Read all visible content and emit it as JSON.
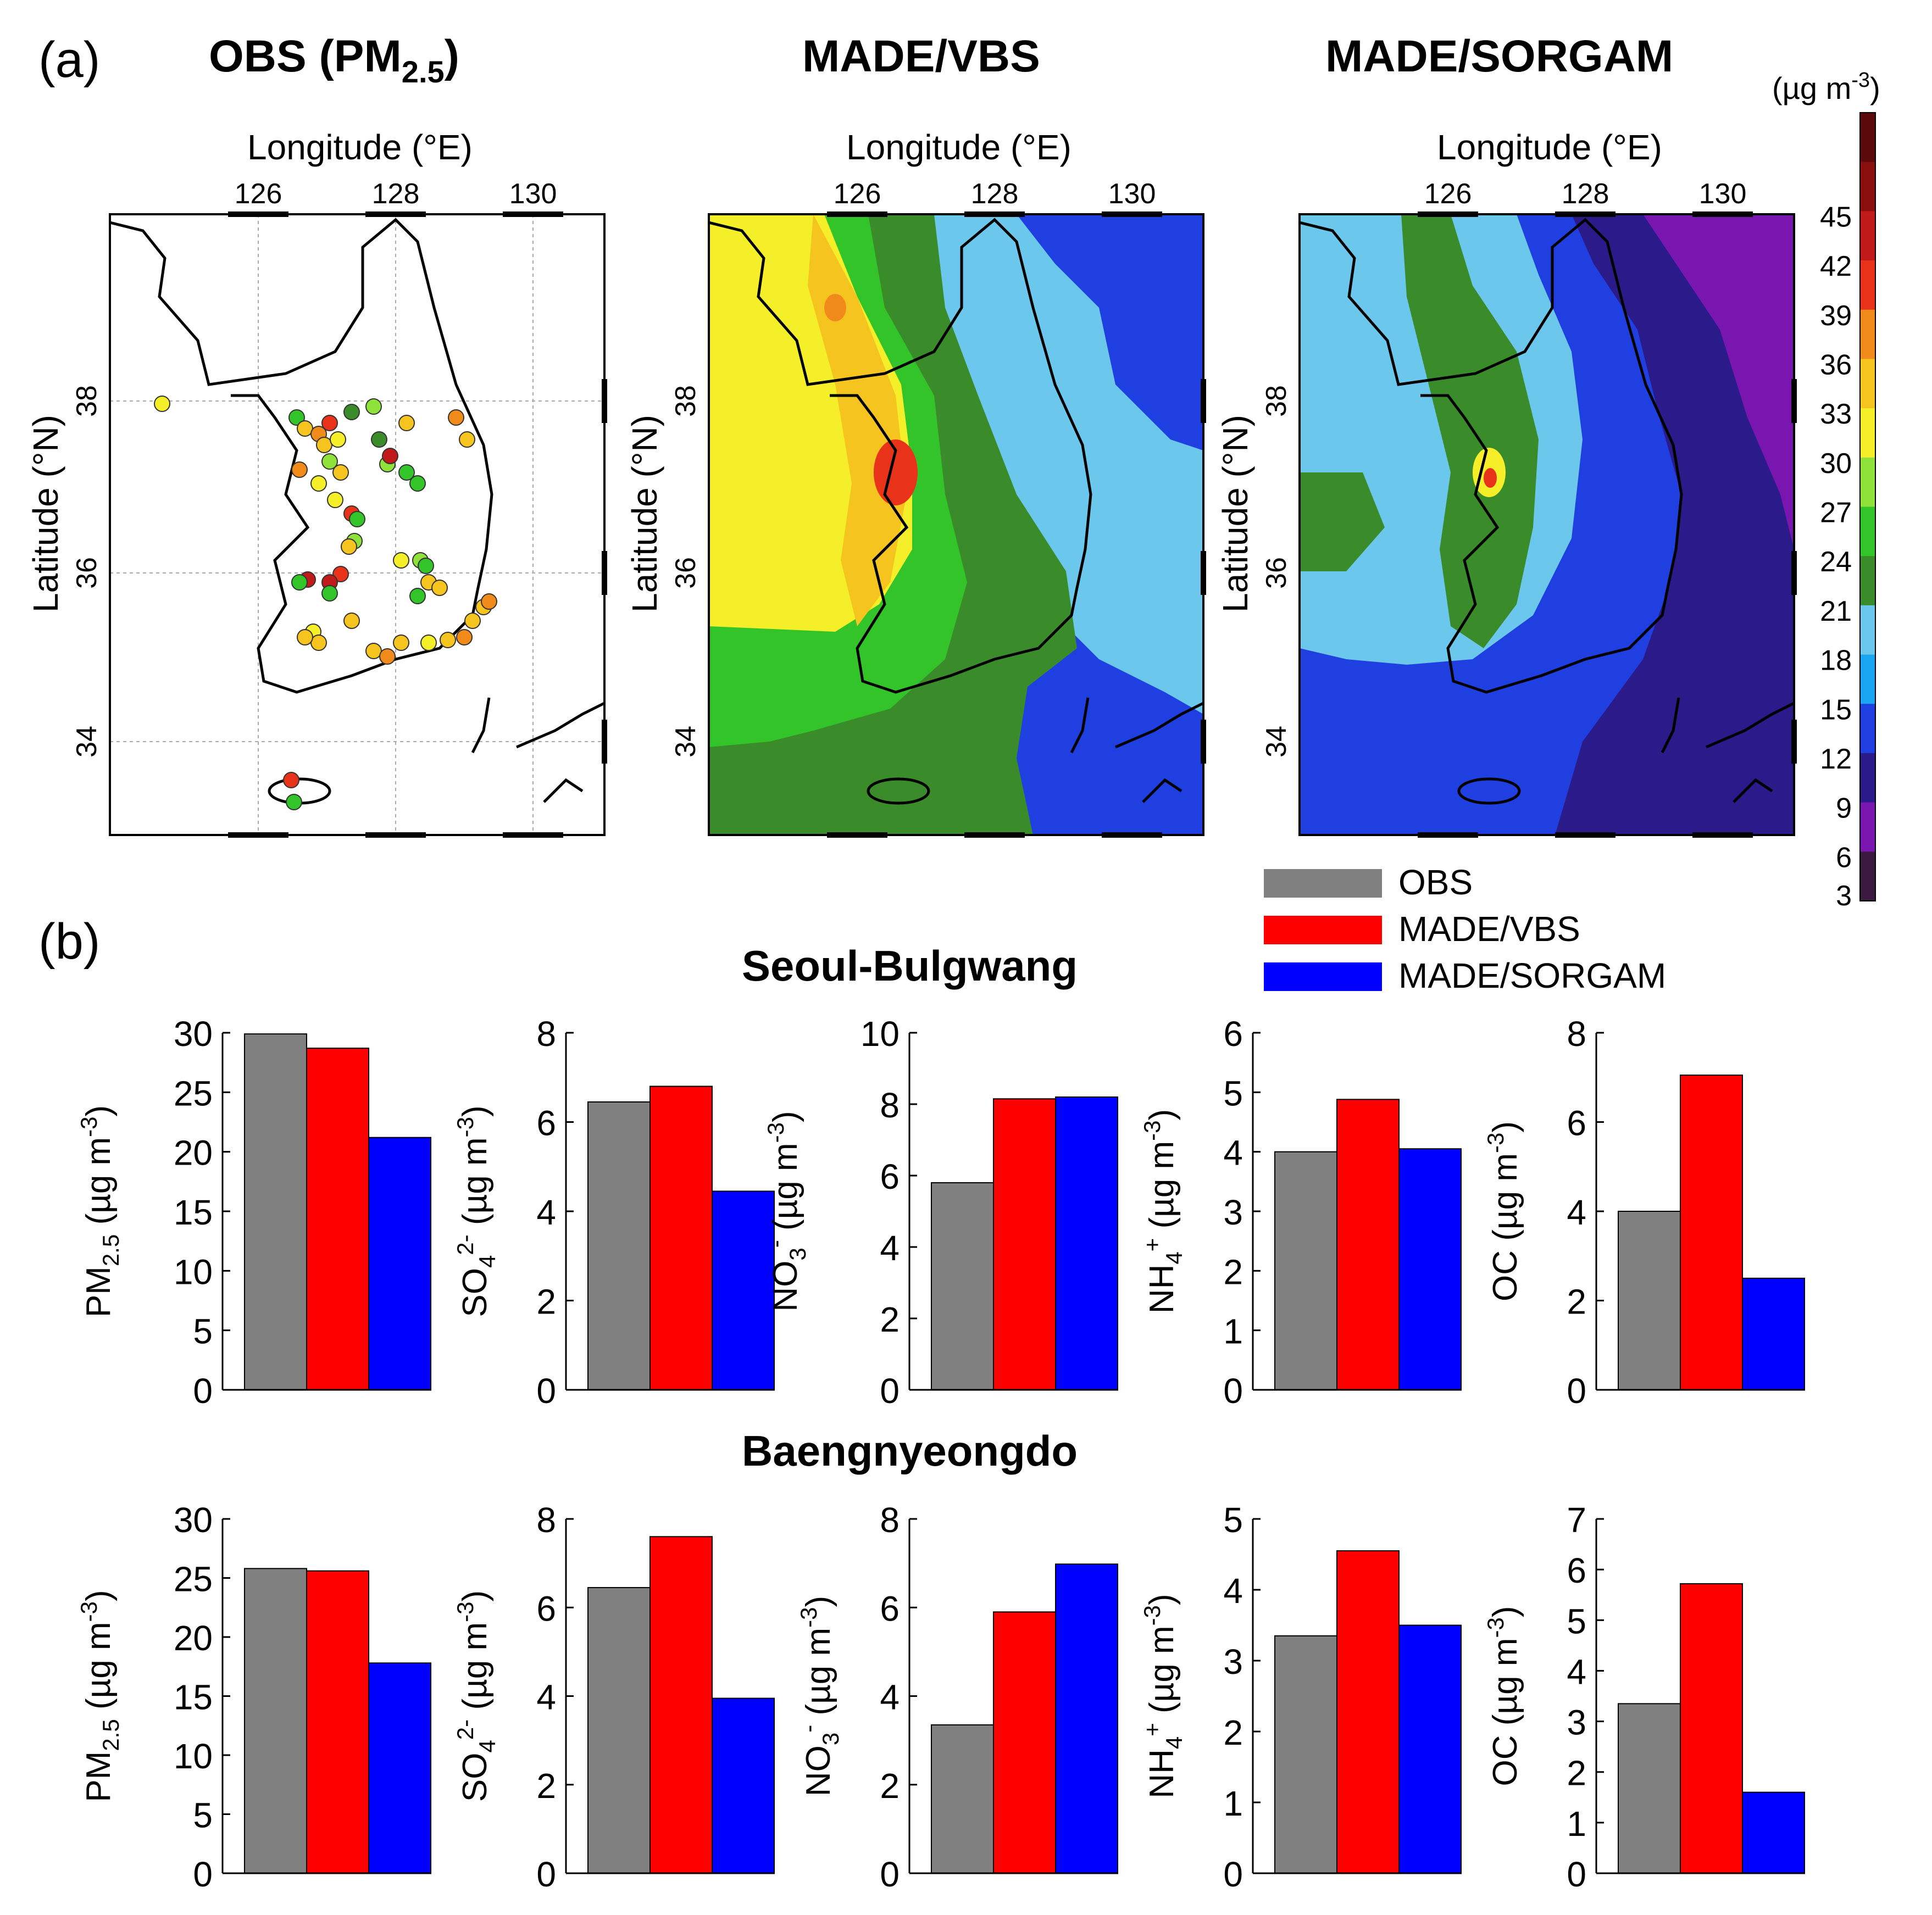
{
  "panel_a": {
    "label": "(a)",
    "maps": [
      {
        "title": "OBS (PM",
        "sub": "2.5",
        "close": ")"
      },
      {
        "title": "MADE/VBS"
      },
      {
        "title": "MADE/SORGAM"
      }
    ],
    "lon_label": "Longitude (°E)",
    "lat_label": "Latitude (°N)",
    "lon_ticks": [
      "126",
      "128",
      "130"
    ],
    "lat_ticks": [
      "34",
      "36",
      "38"
    ],
    "colorbar": {
      "unit": "(µg m",
      "unit_sup": "-3",
      "unit_close": ")",
      "labels": [
        "3",
        "6",
        "9",
        "12",
        "15",
        "18",
        "21",
        "24",
        "27",
        "30",
        "33",
        "36",
        "39",
        "42",
        "45"
      ],
      "colors": [
        "#3a1a3e",
        "#7a16b0",
        "#2a1a8a",
        "#1f3fe0",
        "#1aa5f0",
        "#6cc7ec",
        "#3a8c2a",
        "#33c42a",
        "#8ee23a",
        "#f5ef2a",
        "#f5c41e",
        "#f08a1a",
        "#e8321a",
        "#c01a1a",
        "#8a0f0f",
        "#5a0a0a"
      ]
    }
  },
  "panel_b": {
    "label": "(b)",
    "legend": [
      {
        "label": "OBS",
        "color": "#808080"
      },
      {
        "label": "MADE/VBS",
        "color": "#ff0000"
      },
      {
        "label": "MADE/SORGAM",
        "color": "#0000ff"
      }
    ],
    "site_titles": [
      "Seoul-Bulgwang",
      "Baengnyeongdo"
    ]
  },
  "chart_data": [
    {
      "type": "bar",
      "site": "Seoul-Bulgwang",
      "ylabel": "PM2.5 (µg m-3)",
      "ylim": [
        0,
        30
      ],
      "ticks": [
        "0",
        "5",
        "10",
        "15",
        "20",
        "25",
        "30"
      ],
      "categories": [
        "OBS",
        "MADE/VBS",
        "MADE/SORGAM"
      ],
      "values": [
        29.9,
        28.7,
        21.2
      ]
    },
    {
      "type": "bar",
      "site": "Seoul-Bulgwang",
      "ylabel": "SO42- (µg m-3)",
      "ylim": [
        0,
        8
      ],
      "ticks": [
        "0",
        "2",
        "4",
        "6",
        "8"
      ],
      "categories": [
        "OBS",
        "MADE/VBS",
        "MADE/SORGAM"
      ],
      "values": [
        6.45,
        6.8,
        4.45
      ]
    },
    {
      "type": "bar",
      "site": "Seoul-Bulgwang",
      "ylabel": "NO3- (µg m-3)",
      "ylim": [
        0,
        10
      ],
      "ticks": [
        "0",
        "2",
        "4",
        "6",
        "8",
        "10"
      ],
      "categories": [
        "OBS",
        "MADE/VBS",
        "MADE/SORGAM"
      ],
      "values": [
        5.8,
        8.15,
        8.2
      ]
    },
    {
      "type": "bar",
      "site": "Seoul-Bulgwang",
      "ylabel": "NH4+ (µg m-3)",
      "ylim": [
        0,
        6
      ],
      "ticks": [
        "0",
        "1",
        "2",
        "3",
        "4",
        "5",
        "6"
      ],
      "categories": [
        "OBS",
        "MADE/VBS",
        "MADE/SORGAM"
      ],
      "values": [
        4.0,
        4.88,
        4.05
      ]
    },
    {
      "type": "bar",
      "site": "Seoul-Bulgwang",
      "ylabel": "OC (µg m-3)",
      "ylim": [
        0,
        8
      ],
      "ticks": [
        "0",
        "2",
        "4",
        "6",
        "8"
      ],
      "categories": [
        "OBS",
        "MADE/VBS",
        "MADE/SORGAM"
      ],
      "values": [
        4.0,
        7.05,
        2.5
      ]
    },
    {
      "type": "bar",
      "site": "Baengnyeongdo",
      "ylabel": "PM2.5 (µg m-3)",
      "ylim": [
        0,
        30
      ],
      "ticks": [
        "0",
        "5",
        "10",
        "15",
        "20",
        "25",
        "30"
      ],
      "categories": [
        "OBS",
        "MADE/VBS",
        "MADE/SORGAM"
      ],
      "values": [
        25.8,
        25.6,
        17.8
      ]
    },
    {
      "type": "bar",
      "site": "Baengnyeongdo",
      "ylabel": "SO42- (µg m-3)",
      "ylim": [
        0,
        8
      ],
      "ticks": [
        "0",
        "2",
        "4",
        "6",
        "8"
      ],
      "categories": [
        "OBS",
        "MADE/VBS",
        "MADE/SORGAM"
      ],
      "values": [
        6.45,
        7.6,
        3.95
      ]
    },
    {
      "type": "bar",
      "site": "Baengnyeongdo",
      "ylabel": "NO3- (µg m-3)",
      "ylim": [
        0,
        8
      ],
      "ticks": [
        "0",
        "2",
        "4",
        "6",
        "8"
      ],
      "categories": [
        "OBS",
        "MADE/VBS",
        "MADE/SORGAM"
      ],
      "values": [
        3.35,
        5.9,
        6.98
      ]
    },
    {
      "type": "bar",
      "site": "Baengnyeongdo",
      "ylabel": "NH4+ (µg m-3)",
      "ylim": [
        0,
        5
      ],
      "ticks": [
        "0",
        "1",
        "2",
        "3",
        "4",
        "5"
      ],
      "categories": [
        "OBS",
        "MADE/VBS",
        "MADE/SORGAM"
      ],
      "values": [
        3.35,
        4.55,
        3.5
      ]
    },
    {
      "type": "bar",
      "site": "Baengnyeongdo",
      "ylabel": "OC (µg m-3)",
      "ylim": [
        0,
        7
      ],
      "ticks": [
        "0",
        "1",
        "2",
        "3",
        "4",
        "5",
        "6",
        "7"
      ],
      "categories": [
        "OBS",
        "MADE/VBS",
        "MADE/SORGAM"
      ],
      "values": [
        3.35,
        5.72,
        1.6
      ]
    }
  ],
  "ylabel_parts": {
    "pm": {
      "main": "PM",
      "sub": "2.5",
      "tail": " (µg m",
      "sup": "-3",
      "end": ")"
    },
    "so4": {
      "main": "SO",
      "sub": "4",
      "sup1": "2-",
      "tail": " (µg m",
      "sup": "-3",
      "end": ")"
    },
    "no3": {
      "main": "NO",
      "sub": "3",
      "sup1": "-",
      "tail": " (µg m",
      "sup": "-3",
      "end": ")"
    },
    "nh4": {
      "main": "NH",
      "sub": "4",
      "sup1": "+",
      "tail": " (µg m",
      "sup": "-3",
      "end": ")"
    },
    "oc": {
      "main": "OC",
      "tail": " (µg m",
      "sup": "-3",
      "end": ")"
    }
  }
}
